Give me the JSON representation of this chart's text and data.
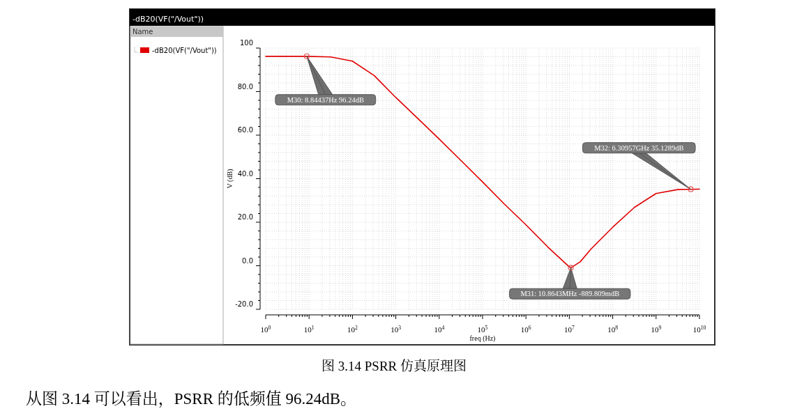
{
  "chart_data": {
    "type": "line",
    "title": "-dB20(VF(\"/Vout\"))",
    "legend_title": "Name",
    "legend": "left",
    "xlabel": "freq (Hz)",
    "ylabel": "V (dB)",
    "log": "x",
    "grid": true,
    "line_style": "solid",
    "marker": "none",
    "xlim": [
      1,
      10000000000
    ],
    "ylim": [
      -20,
      100
    ],
    "xticks": [
      {
        "value": 1,
        "label": "10$^{0}$"
      },
      {
        "value": 10,
        "label": "10$^{1}$"
      },
      {
        "value": 100,
        "label": "10$^{2}$"
      },
      {
        "value": 1000,
        "label": "10$^{3}$"
      },
      {
        "value": 10000,
        "label": "10$^{4}$"
      },
      {
        "value": 100000,
        "label": "10$^{5}$"
      },
      {
        "value": 1000000,
        "label": "10$^{6}$"
      },
      {
        "value": 10000000,
        "label": "10$^{7}$"
      },
      {
        "value": 100000000,
        "label": "10$^{8}$"
      },
      {
        "value": 1000000000,
        "label": "10$^{9}$"
      },
      {
        "value": 10000000000,
        "label": "10$^{10}$"
      }
    ],
    "yticks": [
      {
        "value": -20,
        "label": "-20.0"
      },
      {
        "value": 0,
        "label": "0.0"
      },
      {
        "value": 20,
        "label": "20.0"
      },
      {
        "value": 40,
        "label": "40.0"
      },
      {
        "value": 60,
        "label": "60.0"
      },
      {
        "value": 80,
        "label": "80.0"
      },
      100
    ],
    "series": [
      {
        "name": "-dB20(VF(\"/Vout\"))",
        "color": "#e00000",
        "x": [
          1,
          3,
          8.84437,
          31.6,
          100,
          316,
          1000,
          3160,
          10000,
          31600,
          100000,
          316000,
          1000000,
          3160000,
          10000000,
          10864300,
          17800000,
          31600000,
          100000000,
          316000000,
          1000000000,
          3160000000,
          6309570000,
          10000000000
        ],
        "values": [
          96.2,
          96.2,
          96.2,
          95.9,
          94.0,
          87.4,
          77.3,
          67.8,
          58.2,
          48.4,
          38.5,
          28.4,
          18.8,
          8.7,
          -0.5,
          -0.9,
          1.8,
          7.7,
          17.7,
          26.8,
          33.2,
          35.0,
          35.1,
          35.2
        ]
      }
    ],
    "annotations": [
      {
        "text": "M30: 8.84437Hz 96.24dB",
        "x": 8.84437,
        "y": 96.24
      },
      {
        "text": "M31: 10.8643MHz -889.809mdB",
        "x": 10864300,
        "y": -0.889809
      },
      {
        "text": "M32: 6.30957GHz 35.1289dB",
        "x": 6309570000,
        "y": 35.1289
      },
      "图 3.14 PSRR 仿真原理图",
      "从图 3.14 可以看出，PSRR 的低频值 96.24dB。"
    ]
  }
}
